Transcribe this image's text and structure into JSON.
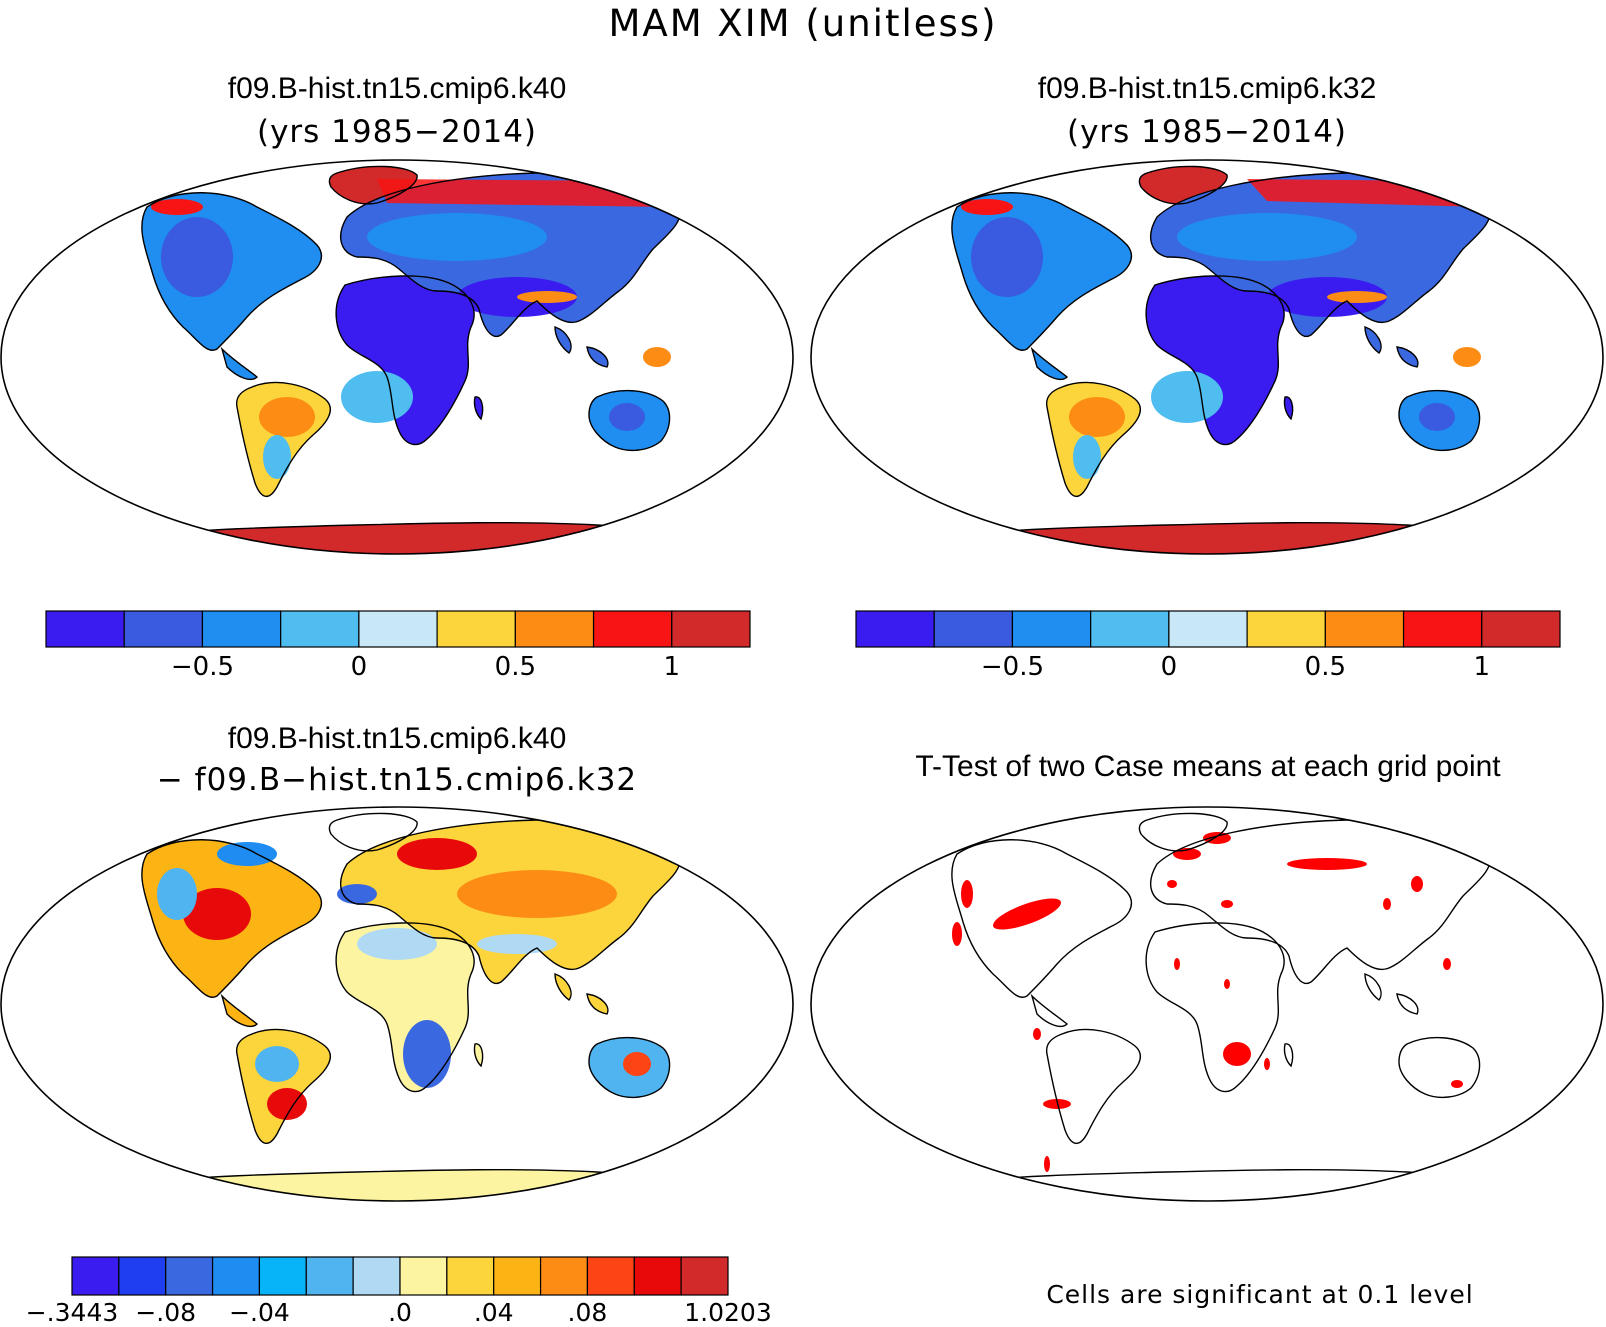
{
  "figure_title": "MAM XIM (unitless)",
  "panels": [
    {
      "id": "k40",
      "title": "f09.B-hist.tn15.cmip6.k40",
      "subtitle": "(yrs 1985−2014)"
    },
    {
      "id": "k32",
      "title": "f09.B-hist.tn15.cmip6.k32",
      "subtitle": "(yrs 1985−2014)"
    },
    {
      "id": "diff",
      "title": "f09.B-hist.tn15.cmip6.k40",
      "subtitle": "− f09.B−hist.tn15.cmip6.k32"
    },
    {
      "id": "ttest",
      "title": "T-Test of two Case means at each grid point",
      "subtitle": ""
    }
  ],
  "colorbars": {
    "top": {
      "colors": [
        "#3b1cf0",
        "#3a5ae0",
        "#1f8ef0",
        "#50bdf0",
        "#c8e8f8",
        "#fcd43c",
        "#fc8c14",
        "#f81414",
        "#d22a2a"
      ],
      "tick_labels": [
        "−0.5",
        "0",
        "0.5",
        "1"
      ]
    },
    "diff": {
      "colors": [
        "#3b1cf0",
        "#1e3ef0",
        "#3a68e0",
        "#1e8cf0",
        "#08b4f8",
        "#50b4f0",
        "#b0daf4",
        "#fcf4a0",
        "#fcd43c",
        "#fcb414",
        "#fc8c14",
        "#fc4414",
        "#e80a0a",
        "#d22a2a"
      ],
      "tick_labels": [
        "−.3443",
        "−.08",
        "−.04",
        ".0",
        ".04",
        ".08",
        "1.0203"
      ]
    }
  },
  "significance_note": "Cells are significant at 0.1 level",
  "legend_colors": {
    "significant": "#ff0000",
    "ocean": "#ffffff",
    "coast": "#000000"
  }
}
